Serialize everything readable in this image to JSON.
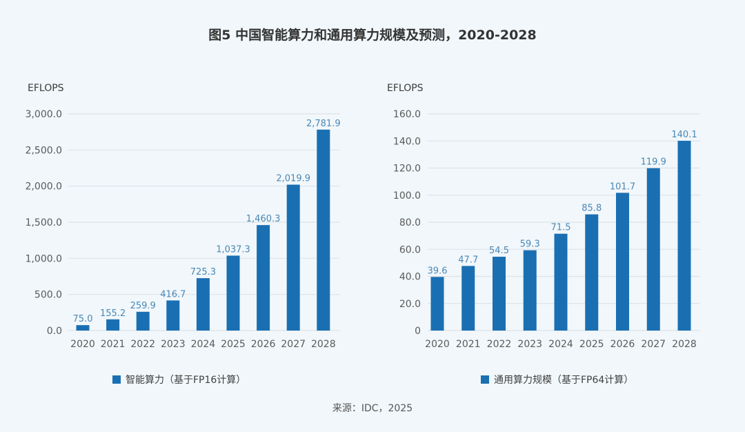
{
  "title": "图5 中国智能算力和通用算力规模及预测，2020-2028",
  "source": "来源：IDC，2025",
  "colors": {
    "bar": "#1a6fb2",
    "label": "#4a87b7",
    "background": "#f1f7fa"
  },
  "chart_data": [
    {
      "type": "bar",
      "title": "",
      "ylabel": "EFLOPS",
      "xlabel": "",
      "categories": [
        "2020",
        "2021",
        "2022",
        "2023",
        "2024",
        "2025",
        "2026",
        "2027",
        "2028"
      ],
      "values": [
        75.0,
        155.2,
        259.9,
        416.7,
        725.3,
        1037.3,
        1460.3,
        2019.9,
        2781.9
      ],
      "value_labels": [
        "75.0",
        "155.2",
        "259.9",
        "416.7",
        "725.3",
        "1,037.3",
        "1,460.3",
        "2,019.9",
        "2,781.9"
      ],
      "ylim": [
        0,
        3000
      ],
      "yticks": [
        0,
        500,
        1000,
        1500,
        2000,
        2500,
        3000
      ],
      "ytick_labels": [
        "0.0",
        "500.0",
        "1,000.0",
        "1,500.0",
        "2,000.0",
        "2,500.0",
        "3,000.0"
      ],
      "grid": true,
      "legend": {
        "label": "智能算力（基于FP16计算）",
        "position": "bottom"
      }
    },
    {
      "type": "bar",
      "title": "",
      "ylabel": "EFLOPS",
      "xlabel": "",
      "categories": [
        "2020",
        "2021",
        "2022",
        "2023",
        "2024",
        "2025",
        "2026",
        "2027",
        "2028"
      ],
      "values": [
        39.6,
        47.7,
        54.5,
        59.3,
        71.5,
        85.8,
        101.7,
        119.9,
        140.1
      ],
      "value_labels": [
        "39.6",
        "47.7",
        "54.5",
        "59.3",
        "71.5",
        "85.8",
        "101.7",
        "119.9",
        "140.1"
      ],
      "ylim": [
        0,
        160
      ],
      "yticks": [
        0,
        20,
        40,
        60,
        80,
        100,
        120,
        140,
        160
      ],
      "ytick_labels": [
        "0",
        "20.0",
        "40.0",
        "60.0",
        "80.0",
        "100.0",
        "120.0",
        "140.0",
        "160.0"
      ],
      "grid": true,
      "legend": {
        "label": "通用算力规模（基于FP64计算）",
        "position": "bottom"
      }
    }
  ]
}
